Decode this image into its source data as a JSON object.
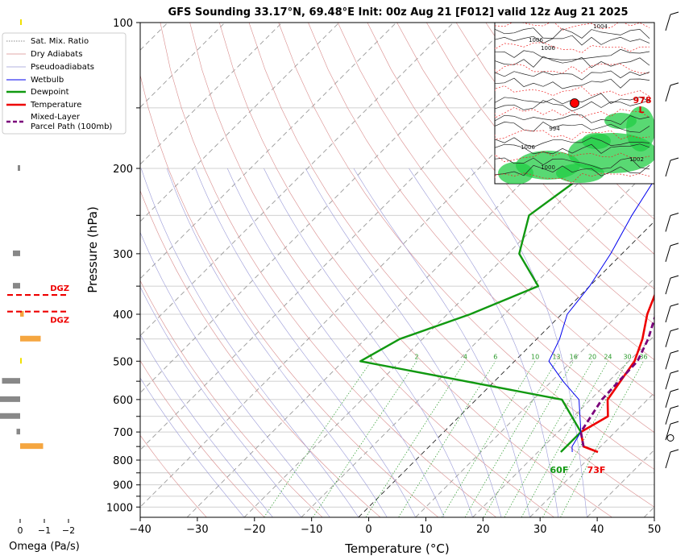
{
  "title": "GFS Sounding 33.17°N, 69.48°E Init: 00z Aug 21 [F012] valid 12z Aug 21 2025",
  "chart_data": {
    "type": "line",
    "xlabel": "Temperature (°C)",
    "ylabel": "Pressure (hPa)",
    "xlim": [
      -40,
      50
    ],
    "ylim": [
      1050,
      100
    ],
    "y_scale": "log",
    "skew": true,
    "x_ticks": [
      "−40",
      "−30",
      "−20",
      "−10",
      "0",
      "10",
      "20",
      "30",
      "40",
      "50"
    ],
    "y_ticks": [
      "100",
      "200",
      "300",
      "400",
      "500",
      "600",
      "700",
      "800",
      "900",
      "1000"
    ],
    "grid": true,
    "legend_position": "top-left",
    "legend": [
      "Sat. Mix. Ratio",
      "Dry Adiabats",
      "Pseudoadiabats",
      "Wetbulb",
      "Dewpoint",
      "Temperature",
      "Mixed-Layer",
      "Parcel Path (100mb)"
    ],
    "series": [
      {
        "name": "Temperature",
        "color": "#ee0000",
        "points": [
          [
            30.5,
            770
          ],
          [
            27,
            750
          ],
          [
            24,
            700
          ],
          [
            26,
            650
          ],
          [
            23,
            600
          ],
          [
            21,
            500
          ],
          [
            18.5,
            450
          ],
          [
            15,
            400
          ],
          [
            12,
            350
          ],
          [
            9,
            300
          ],
          [
            6,
            250
          ],
          [
            0,
            200
          ],
          [
            -8,
            160
          ],
          [
            -9,
            125
          ],
          [
            -10,
            100
          ]
        ]
      },
      {
        "name": "Dewpoint",
        "color": "#119911",
        "points": [
          [
            24,
            770
          ],
          [
            24,
            750
          ],
          [
            24,
            700
          ],
          [
            15,
            600
          ],
          [
            -27,
            500
          ],
          [
            -24,
            450
          ],
          [
            -16,
            400
          ],
          [
            -9,
            350
          ],
          [
            -18,
            300
          ],
          [
            -23,
            250
          ],
          [
            -20,
            200
          ],
          [
            -15,
            150
          ],
          [
            -11,
            125
          ],
          [
            -8,
            100
          ]
        ]
      },
      {
        "name": "Wetbulb",
        "color": "#0000ee",
        "points": [
          [
            26,
            770
          ],
          [
            25,
            750
          ],
          [
            24,
            700
          ],
          [
            18,
            600
          ],
          [
            12,
            550
          ],
          [
            6,
            500
          ],
          [
            4,
            450
          ],
          [
            1,
            400
          ],
          [
            0,
            350
          ],
          [
            -2,
            300
          ],
          [
            -5,
            250
          ],
          [
            -8,
            200
          ],
          [
            -8,
            160
          ]
        ]
      },
      {
        "name": "Mixed-Layer Parcel Path (100mb)",
        "color": "#7a007a",
        "points": [
          [
            27,
            750
          ],
          [
            24,
            700
          ],
          [
            22,
            600
          ],
          [
            21.5,
            500
          ],
          [
            19.5,
            450
          ],
          [
            16.5,
            400
          ],
          [
            13,
            350
          ],
          [
            10,
            300
          ],
          [
            7,
            250
          ],
          [
            2,
            200
          ],
          [
            -7,
            160
          ],
          [
            -15,
            125
          ],
          [
            -20,
            100
          ]
        ]
      }
    ],
    "mixing_ratio_labels": [
      "1",
      "2",
      "4",
      "6",
      "10",
      "13",
      "16",
      "20",
      "24",
      "30",
      "36"
    ],
    "surface_labels": {
      "temperature": "73F",
      "dewpoint": "60F"
    },
    "omega": {
      "xlabel": "Omega (Pa/s)",
      "x_ticks": [
        "0",
        "−1",
        "−2"
      ],
      "dgz_label": "DGZ",
      "dgz_pressures": [
        365,
        395
      ],
      "bars": [
        {
          "p": 100,
          "v": -0.05,
          "color": "#f0e000"
        },
        {
          "p": 200,
          "v": 0.1,
          "color": "#888888"
        },
        {
          "p": 300,
          "v": 0.3,
          "color": "#888888"
        },
        {
          "p": 350,
          "v": 0.3,
          "color": "#888888"
        },
        {
          "p": 400,
          "v": -0.15,
          "color": "#f5a640"
        },
        {
          "p": 450,
          "v": -0.85,
          "color": "#f5a640"
        },
        {
          "p": 500,
          "v": -0.05,
          "color": "#f0e000"
        },
        {
          "p": 550,
          "v": 0.75,
          "color": "#888888"
        },
        {
          "p": 600,
          "v": 0.95,
          "color": "#888888"
        },
        {
          "p": 650,
          "v": 0.95,
          "color": "#888888"
        },
        {
          "p": 700,
          "v": 0.15,
          "color": "#888888"
        },
        {
          "p": 750,
          "v": -0.95,
          "color": "#f5a640"
        }
      ]
    }
  },
  "inset_map": {
    "labels": [
      "1004",
      "1006",
      "1006",
      "994",
      "1006",
      "1000",
      "1002",
      "978",
      "L"
    ]
  }
}
